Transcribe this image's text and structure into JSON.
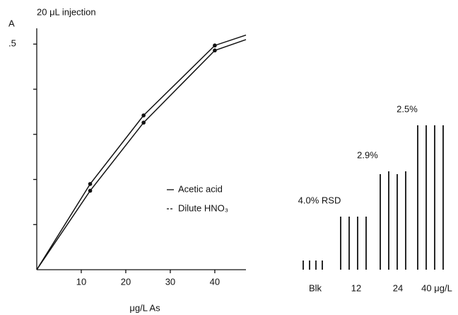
{
  "chart_data": [
    {
      "type": "line",
      "title": "20 μL injection",
      "y_label": "A",
      "x_label": "μg/L As",
      "xlim": [
        0,
        47
      ],
      "ylim": [
        0,
        0.535
      ],
      "xticks": [
        10,
        20,
        30,
        40
      ],
      "yticks": [
        {
          "value": 0.1,
          "label": null
        },
        {
          "value": 0.2,
          "label": null
        },
        {
          "value": 0.3,
          "label": null
        },
        {
          "value": 0.4,
          "label": null
        },
        {
          "value": 0.5,
          "label": ".5"
        }
      ],
      "series": [
        {
          "name": "Acetic acid",
          "color": "#111111",
          "line_style": "solid",
          "x": [
            0,
            12,
            24,
            40,
            47
          ],
          "values": [
            0,
            0.19,
            0.342,
            0.497,
            0.52
          ]
        },
        {
          "name": "Dilute HNO₃",
          "color": "#111111",
          "line_style": "dashed",
          "x": [
            0,
            12,
            24,
            40,
            47
          ],
          "values": [
            0,
            0.175,
            0.326,
            0.486,
            0.51
          ]
        }
      ]
    },
    {
      "type": "peaks",
      "ylim": [
        0,
        210
      ],
      "color": "#111111",
      "groups": [
        {
          "label": "Blk",
          "values": [
            13,
            13,
            13,
            13
          ]
        },
        {
          "label": "12",
          "values": [
            75,
            75,
            75,
            75
          ],
          "annotation": "4.0% RSD"
        },
        {
          "label": "24",
          "values": [
            135,
            139,
            135,
            139
          ],
          "annotation": "2.9%"
        },
        {
          "label": "40 μg/L",
          "values": [
            204,
            204,
            204,
            204
          ],
          "annotation": "2.5%"
        }
      ]
    }
  ]
}
